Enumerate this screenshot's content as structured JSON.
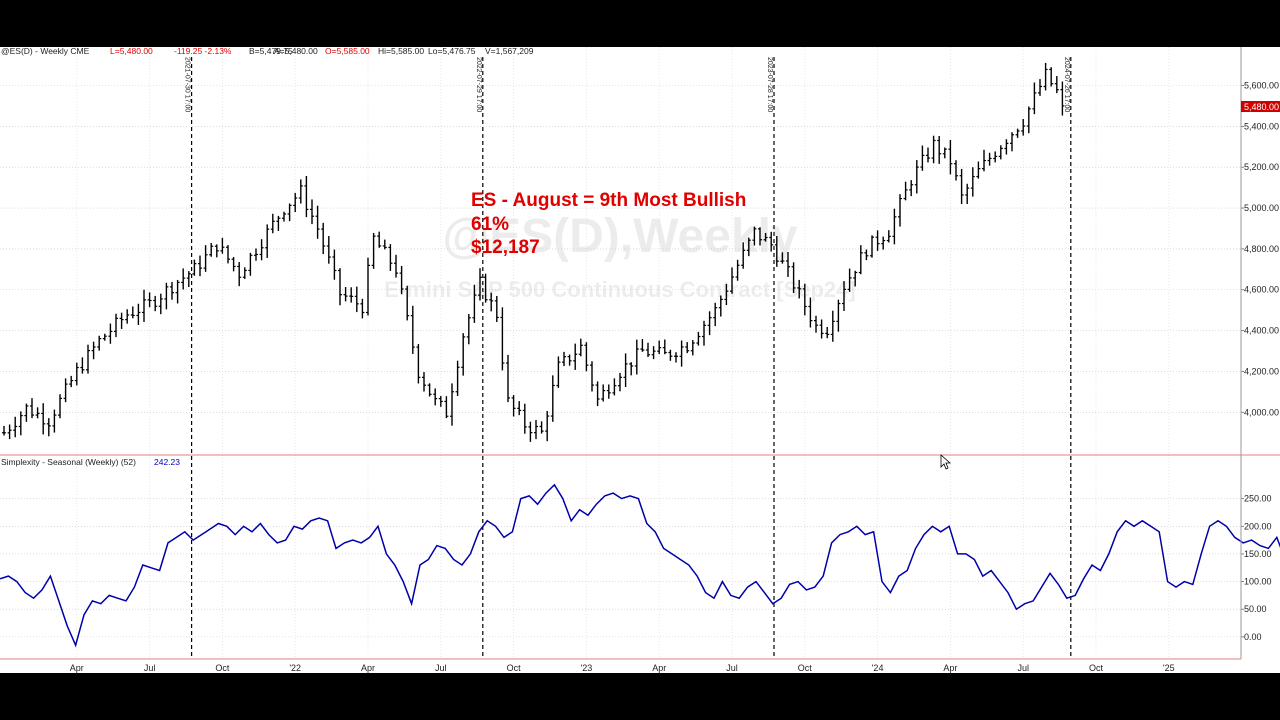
{
  "header": {
    "symbol": "@ES(D) - Weekly  CME",
    "low": "L=5,480.00",
    "change": "-119.25 -2.13%",
    "bid": "B=5,479.75",
    "ask": "A=5,480.00",
    "open": "O=5,585.00",
    "high": "Hi=5,585.00",
    "lo": "Lo=5,476.75",
    "volume": "V=1,567,209"
  },
  "watermark": {
    "title": "@ES(D),Weekly",
    "subtitle": "E-mini S&P 500 Continuous Contract [Sep24]"
  },
  "annotation": {
    "line1": "ES - August = 9th Most Bullish",
    "line2": "61%",
    "line3": "$12,187"
  },
  "last_price_label": "5,480.00",
  "indicator": {
    "name": "Simplexity - Seasonal (Weekly) (52)",
    "value": "242.23"
  },
  "vlines": [
    {
      "week": 33.5,
      "label": "2021-07-30 17:00"
    },
    {
      "week": 85.5,
      "label": "2022-07-29 17:00"
    },
    {
      "week": 137.5,
      "label": "2023-07-28 17:00"
    },
    {
      "week": 190.5,
      "label": "2024-07-26 17:00"
    }
  ],
  "chart_data": [
    {
      "type": "ohlc",
      "title": "@ES(D),Weekly",
      "subtitle": "E-mini S&P 500 Continuous Contract [Sep24]",
      "ylim": [
        3830,
        5720
      ],
      "yticks": [
        4000,
        4200,
        4400,
        4600,
        4800,
        5000,
        5200,
        5400,
        5600
      ],
      "ytick_labels": [
        "4,000.00",
        "4,200.00",
        "4,400.00",
        "4,600.00",
        "4,800.00",
        "5,000.00",
        "5,200.00",
        "5,400.00",
        "5,600.00"
      ],
      "xticks": [
        {
          "week": 13,
          "label": "Apr"
        },
        {
          "week": 26,
          "label": "Jul"
        },
        {
          "week": 39,
          "label": "Oct"
        },
        {
          "week": 52,
          "label": "'22"
        },
        {
          "week": 65,
          "label": "Apr"
        },
        {
          "week": 78,
          "label": "Jul"
        },
        {
          "week": 91,
          "label": "Oct"
        },
        {
          "week": 104,
          "label": "'23"
        },
        {
          "week": 117,
          "label": "Apr"
        },
        {
          "week": 130,
          "label": "Jul"
        },
        {
          "week": 143,
          "label": "Oct"
        },
        {
          "week": 156,
          "label": "'24"
        },
        {
          "week": 169,
          "label": "Apr"
        },
        {
          "week": 182,
          "label": "Jul"
        },
        {
          "week": 195,
          "label": "Oct"
        },
        {
          "week": 208,
          "label": "'25"
        }
      ],
      "xlim": [
        0,
        222
      ],
      "last_week": 189,
      "close_anchors": [
        [
          0,
          3900
        ],
        [
          4,
          4020
        ],
        [
          8,
          3960
        ],
        [
          13,
          4200
        ],
        [
          17,
          4350
        ],
        [
          22,
          4480
        ],
        [
          26,
          4530
        ],
        [
          30,
          4620
        ],
        [
          34,
          4700
        ],
        [
          38,
          4820
        ],
        [
          42,
          4680
        ],
        [
          46,
          4840
        ],
        [
          50,
          5000
        ],
        [
          53,
          5080
        ],
        [
          56,
          4900
        ],
        [
          60,
          4580
        ],
        [
          64,
          4520
        ],
        [
          66,
          4850
        ],
        [
          70,
          4700
        ],
        [
          74,
          4200
        ],
        [
          77,
          4050
        ],
        [
          79,
          4000
        ],
        [
          82,
          4380
        ],
        [
          85,
          4630
        ],
        [
          88,
          4480
        ],
        [
          90,
          4050
        ],
        [
          93,
          3940
        ],
        [
          96,
          3900
        ],
        [
          99,
          4220
        ],
        [
          103,
          4320
        ],
        [
          106,
          4060
        ],
        [
          110,
          4200
        ],
        [
          114,
          4300
        ],
        [
          118,
          4280
        ],
        [
          122,
          4330
        ],
        [
          127,
          4500
        ],
        [
          131,
          4720
        ],
        [
          134,
          4880
        ],
        [
          137,
          4820
        ],
        [
          140,
          4680
        ],
        [
          145,
          4420
        ],
        [
          147,
          4410
        ],
        [
          150,
          4620
        ],
        [
          154,
          4800
        ],
        [
          158,
          4890
        ],
        [
          162,
          5140
        ],
        [
          166,
          5310
        ],
        [
          169,
          5230
        ],
        [
          171,
          5050
        ],
        [
          174,
          5180
        ],
        [
          178,
          5310
        ],
        [
          182,
          5430
        ],
        [
          186,
          5650
        ],
        [
          188,
          5570
        ],
        [
          189,
          5480
        ]
      ]
    },
    {
      "type": "line",
      "name": "Simplexity - Seasonal (Weekly) (52)",
      "ylim": [
        -40,
        300
      ],
      "yticks": [
        0,
        50,
        100,
        150,
        200,
        250
      ],
      "ytick_labels": [
        "0.00",
        "50.00",
        "100.00",
        "150.00",
        "200.00",
        "250.00"
      ],
      "color": "#0000aa",
      "x_step_weeks": 1.5,
      "values": [
        105,
        110,
        100,
        80,
        70,
        85,
        110,
        65,
        20,
        -15,
        40,
        65,
        60,
        75,
        70,
        65,
        90,
        130,
        125,
        120,
        170,
        180,
        190,
        175,
        185,
        195,
        205,
        200,
        185,
        200,
        190,
        205,
        185,
        170,
        175,
        200,
        195,
        210,
        215,
        210,
        160,
        170,
        175,
        170,
        180,
        200,
        150,
        130,
        100,
        60,
        130,
        140,
        165,
        160,
        140,
        130,
        150,
        190,
        210,
        200,
        180,
        190,
        250,
        255,
        240,
        260,
        275,
        250,
        210,
        230,
        220,
        240,
        255,
        260,
        250,
        255,
        250,
        205,
        190,
        160,
        150,
        140,
        130,
        110,
        80,
        70,
        100,
        75,
        70,
        90,
        100,
        80,
        60,
        70,
        95,
        100,
        85,
        90,
        110,
        170,
        185,
        190,
        200,
        185,
        190,
        100,
        80,
        110,
        120,
        160,
        185,
        200,
        190,
        200,
        150,
        150,
        140,
        110,
        120,
        100,
        80,
        50,
        60,
        65,
        90,
        115,
        95,
        70,
        75,
        105,
        130,
        120,
        150,
        190,
        210,
        200,
        210,
        200,
        190,
        100,
        90,
        100,
        95,
        150,
        200,
        210,
        200,
        180,
        170,
        175,
        165,
        160,
        180,
        140,
        110,
        120,
        125
      ]
    }
  ]
}
